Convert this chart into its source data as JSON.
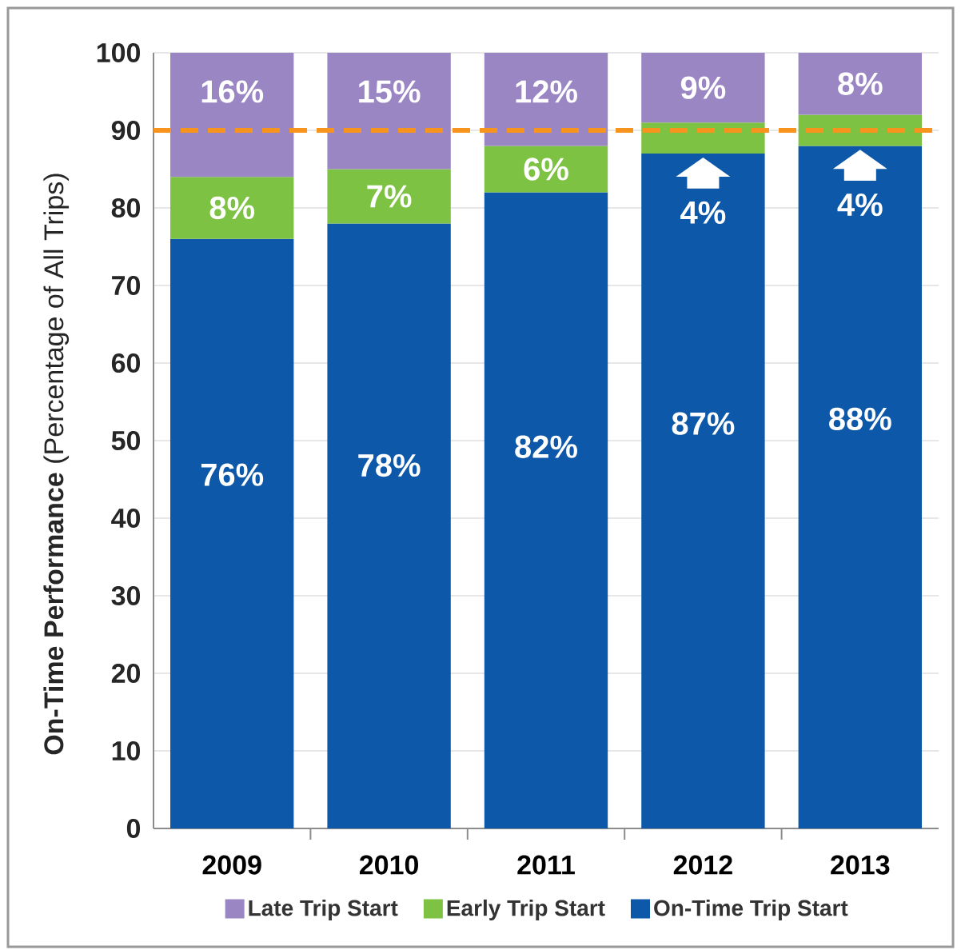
{
  "chart_data": {
    "type": "bar",
    "stacked": true,
    "categories": [
      "2009",
      "2010",
      "2011",
      "2012",
      "2013"
    ],
    "ylabel": "**On-Time Performance** (Percentage of All Trips)",
    "ylim": [
      0,
      100
    ],
    "yticks": [
      0,
      10,
      20,
      30,
      40,
      50,
      60,
      70,
      80,
      90,
      100
    ],
    "grid": "y",
    "legend": "bottom",
    "series": [
      {
        "name": "On-Time Trip Start",
        "color": "#0d58a8",
        "values": [
          76,
          78,
          82,
          87,
          88
        ],
        "value_labels": [
          "76%",
          "78%",
          "82%",
          "87%",
          "88%"
        ]
      },
      {
        "name": "Early Trip Start",
        "color": "#7dc242",
        "values": [
          8,
          7,
          6,
          4,
          4
        ],
        "value_labels": [
          "8%",
          "7%",
          "6%",
          "4%",
          "4%"
        ]
      },
      {
        "name": "Late Trip Start",
        "color": "#9b86c4",
        "values": [
          16,
          15,
          12,
          9,
          8
        ],
        "value_labels": [
          "16%",
          "15%",
          "12%",
          "9%",
          "8%"
        ]
      }
    ],
    "ref_lines": [
      {
        "axis": "y",
        "value": 90,
        "color": "#f7941d",
        "line_style": "dashed"
      }
    ]
  }
}
